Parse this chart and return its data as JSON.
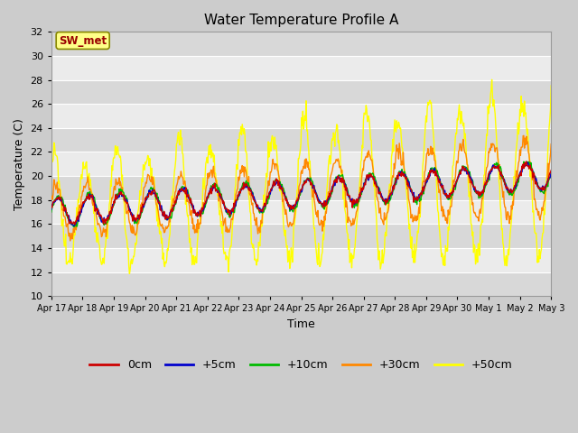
{
  "title": "Water Temperature Profile A",
  "xlabel": "Time",
  "ylabel": "Temperature (C)",
  "ylim": [
    10,
    32
  ],
  "yticks": [
    10,
    12,
    14,
    16,
    18,
    20,
    22,
    24,
    26,
    28,
    30,
    32
  ],
  "series_colors": {
    "0cm": "#cc0000",
    "+5cm": "#0000cc",
    "+10cm": "#00bb00",
    "+30cm": "#ff8800",
    "+50cm": "#ffff00"
  },
  "label_name": "SW_met",
  "n_days": 16,
  "seed": 12345
}
